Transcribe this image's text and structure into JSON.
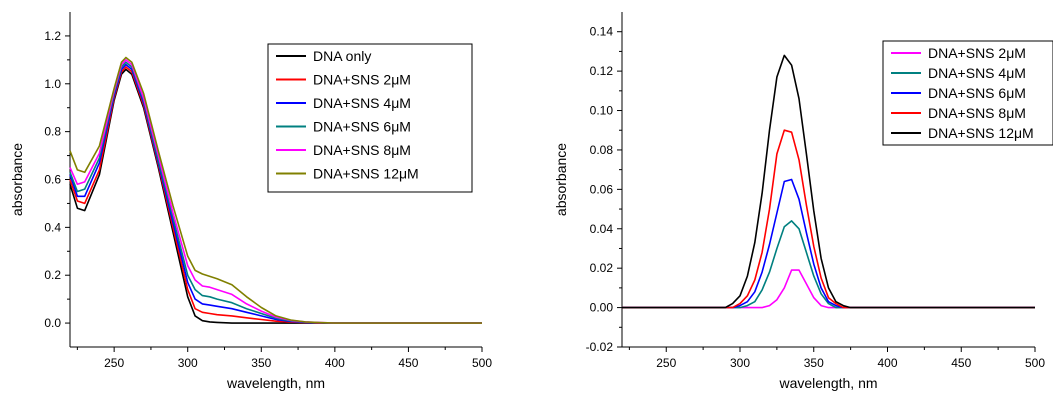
{
  "chart_data": [
    {
      "type": "line",
      "title": "",
      "xlabel": "wavelength, nm",
      "ylabel": "absorbance",
      "xlim": [
        220,
        500
      ],
      "ylim": [
        -0.1,
        1.3
      ],
      "xticks": [
        "250",
        "300",
        "350",
        "400",
        "450",
        "500"
      ],
      "xtick_values": [
        250,
        300,
        350,
        400,
        450,
        500
      ],
      "yticks": [
        "0.0",
        "0.2",
        "0.4",
        "0.6",
        "0.8",
        "1.0",
        "1.2"
      ],
      "ytick_values": [
        0.0,
        0.2,
        0.4,
        0.6,
        0.8,
        1.0,
        1.2
      ],
      "legend_position": "top-right",
      "x": [
        220,
        225,
        230,
        240,
        250,
        255,
        258,
        262,
        270,
        280,
        290,
        300,
        305,
        310,
        315,
        320,
        330,
        340,
        350,
        360,
        370,
        380,
        390,
        400,
        450,
        500
      ],
      "series": [
        {
          "name": "DNA only",
          "color": "#000000",
          "values": [
            0.58,
            0.48,
            0.47,
            0.62,
            0.93,
            1.04,
            1.06,
            1.04,
            0.9,
            0.65,
            0.38,
            0.11,
            0.03,
            0.01,
            0.005,
            0.003,
            0.0,
            0.0,
            0.0,
            0.0,
            0.0,
            0.0,
            0.0,
            0.0,
            0.0,
            0.0
          ]
        },
        {
          "name": "DNA+SNS 2μM",
          "color": "#ff0000",
          "values": [
            0.6,
            0.51,
            0.5,
            0.64,
            0.94,
            1.05,
            1.07,
            1.05,
            0.91,
            0.66,
            0.4,
            0.14,
            0.06,
            0.045,
            0.04,
            0.035,
            0.03,
            0.022,
            0.015,
            0.008,
            0.004,
            0.002,
            0.0,
            0.0,
            0.0,
            0.0
          ]
        },
        {
          "name": "DNA+SNS 4μM",
          "color": "#0000ff",
          "values": [
            0.62,
            0.53,
            0.53,
            0.67,
            0.95,
            1.06,
            1.08,
            1.06,
            0.92,
            0.67,
            0.42,
            0.17,
            0.1,
            0.08,
            0.075,
            0.07,
            0.06,
            0.045,
            0.03,
            0.015,
            0.007,
            0.003,
            0.001,
            0.0,
            0.0,
            0.0
          ]
        },
        {
          "name": "DNA+SNS 6μM",
          "color": "#008080",
          "values": [
            0.63,
            0.55,
            0.56,
            0.69,
            0.96,
            1.07,
            1.09,
            1.07,
            0.93,
            0.68,
            0.44,
            0.2,
            0.14,
            0.115,
            0.11,
            0.1,
            0.085,
            0.06,
            0.04,
            0.02,
            0.009,
            0.004,
            0.001,
            0.0,
            0.0,
            0.0
          ]
        },
        {
          "name": "DNA+SNS 8μM",
          "color": "#ff00ff",
          "values": [
            0.65,
            0.58,
            0.59,
            0.71,
            0.97,
            1.08,
            1.1,
            1.08,
            0.94,
            0.7,
            0.46,
            0.24,
            0.18,
            0.155,
            0.15,
            0.14,
            0.12,
            0.08,
            0.05,
            0.025,
            0.011,
            0.005,
            0.002,
            0.0,
            0.0,
            0.0
          ]
        },
        {
          "name": "DNA+SNS 12μM",
          "color": "#808000",
          "values": [
            0.72,
            0.64,
            0.63,
            0.74,
            0.98,
            1.09,
            1.11,
            1.09,
            0.96,
            0.72,
            0.49,
            0.28,
            0.22,
            0.205,
            0.195,
            0.185,
            0.16,
            0.11,
            0.065,
            0.03,
            0.013,
            0.005,
            0.002,
            0.0,
            0.0,
            0.0
          ]
        }
      ]
    },
    {
      "type": "line",
      "title": "",
      "xlabel": "wavelength, nm",
      "ylabel": "absorbance",
      "xlim": [
        220,
        500
      ],
      "ylim": [
        -0.02,
        0.15
      ],
      "xticks": [
        "250",
        "300",
        "350",
        "400",
        "450",
        "500"
      ],
      "xtick_values": [
        250,
        300,
        350,
        400,
        450,
        500
      ],
      "yticks": [
        "-0.02",
        "0.00",
        "0.02",
        "0.04",
        "0.06",
        "0.08",
        "0.10",
        "0.12",
        "0.14"
      ],
      "ytick_values": [
        -0.02,
        0.0,
        0.02,
        0.04,
        0.06,
        0.08,
        0.1,
        0.12,
        0.14
      ],
      "legend_position": "top-right",
      "x": [
        220,
        280,
        285,
        290,
        295,
        300,
        305,
        310,
        315,
        320,
        325,
        330,
        335,
        340,
        345,
        350,
        355,
        360,
        365,
        370,
        375,
        380,
        500
      ],
      "series": [
        {
          "name": "DNA+SNS 2μM",
          "color": "#ff00ff",
          "values": [
            0.0,
            0.0,
            0.0,
            0.0,
            0.0,
            0.0,
            0.0,
            0.0,
            0.0,
            0.001,
            0.004,
            0.01,
            0.019,
            0.019,
            0.012,
            0.005,
            0.001,
            0.0,
            0.0,
            0.0,
            0.0,
            0.0,
            0.0
          ]
        },
        {
          "name": "DNA+SNS 4μM",
          "color": "#008080",
          "values": [
            0.0,
            0.0,
            0.0,
            0.0,
            0.0,
            0.0,
            0.001,
            0.003,
            0.009,
            0.018,
            0.03,
            0.041,
            0.044,
            0.04,
            0.028,
            0.016,
            0.007,
            0.002,
            0.0,
            0.0,
            0.0,
            0.0,
            0.0
          ]
        },
        {
          "name": "DNA+SNS 6μM",
          "color": "#0000ff",
          "values": [
            0.0,
            0.0,
            0.0,
            0.0,
            0.0,
            0.001,
            0.003,
            0.008,
            0.018,
            0.032,
            0.048,
            0.064,
            0.065,
            0.055,
            0.038,
            0.022,
            0.01,
            0.003,
            0.001,
            0.0,
            0.0,
            0.0,
            0.0
          ]
        },
        {
          "name": "DNA+SNS 8μM",
          "color": "#ff0000",
          "values": [
            0.0,
            0.0,
            0.0,
            0.0,
            0.0,
            0.002,
            0.006,
            0.014,
            0.028,
            0.05,
            0.078,
            0.09,
            0.089,
            0.075,
            0.052,
            0.031,
            0.015,
            0.005,
            0.002,
            0.0,
            0.0,
            0.0,
            0.0
          ]
        },
        {
          "name": "DNA+SNS 12μM",
          "color": "#000000",
          "values": [
            0.0,
            0.0,
            0.0,
            0.0,
            0.002,
            0.006,
            0.016,
            0.033,
            0.058,
            0.09,
            0.117,
            0.128,
            0.123,
            0.106,
            0.078,
            0.049,
            0.025,
            0.01,
            0.003,
            0.001,
            0.0,
            0.0,
            0.0
          ]
        }
      ]
    }
  ]
}
